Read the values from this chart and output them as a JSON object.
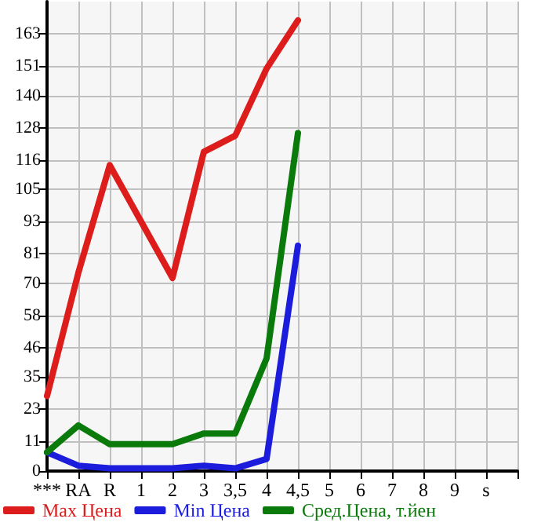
{
  "chart_data": {
    "type": "line",
    "categories": [
      "***",
      "RA",
      "R",
      "1",
      "2",
      "3",
      "3,5",
      "4",
      "4,5",
      "5",
      "6",
      "7",
      "8",
      "9",
      "s",
      null
    ],
    "series": [
      {
        "name": "Max Цена",
        "color": "#dd1c1c",
        "values": [
          28,
          74,
          114,
          93,
          72,
          119,
          125,
          150,
          168,
          null,
          null,
          null,
          null,
          null,
          null,
          null
        ]
      },
      {
        "name": "Min Цена",
        "color": "#1c1cdd",
        "values": [
          7,
          2,
          1,
          1,
          1,
          2,
          1,
          4.5,
          84,
          null,
          null,
          null,
          null,
          null,
          null,
          null
        ]
      },
      {
        "name": "Сред.Цена, т.йен",
        "color": "#0a7a0a",
        "values": [
          7,
          17,
          10,
          10,
          10,
          14,
          14,
          42,
          126,
          null,
          null,
          null,
          null,
          null,
          null,
          null
        ]
      }
    ],
    "ylim": [
      0,
      175
    ],
    "yticks": [
      0,
      11,
      23,
      35,
      46,
      58,
      70,
      81,
      93,
      105,
      116,
      128,
      140,
      151,
      163
    ],
    "grid": true,
    "legend": "bottom",
    "marker": "none",
    "line_style": "solid"
  }
}
